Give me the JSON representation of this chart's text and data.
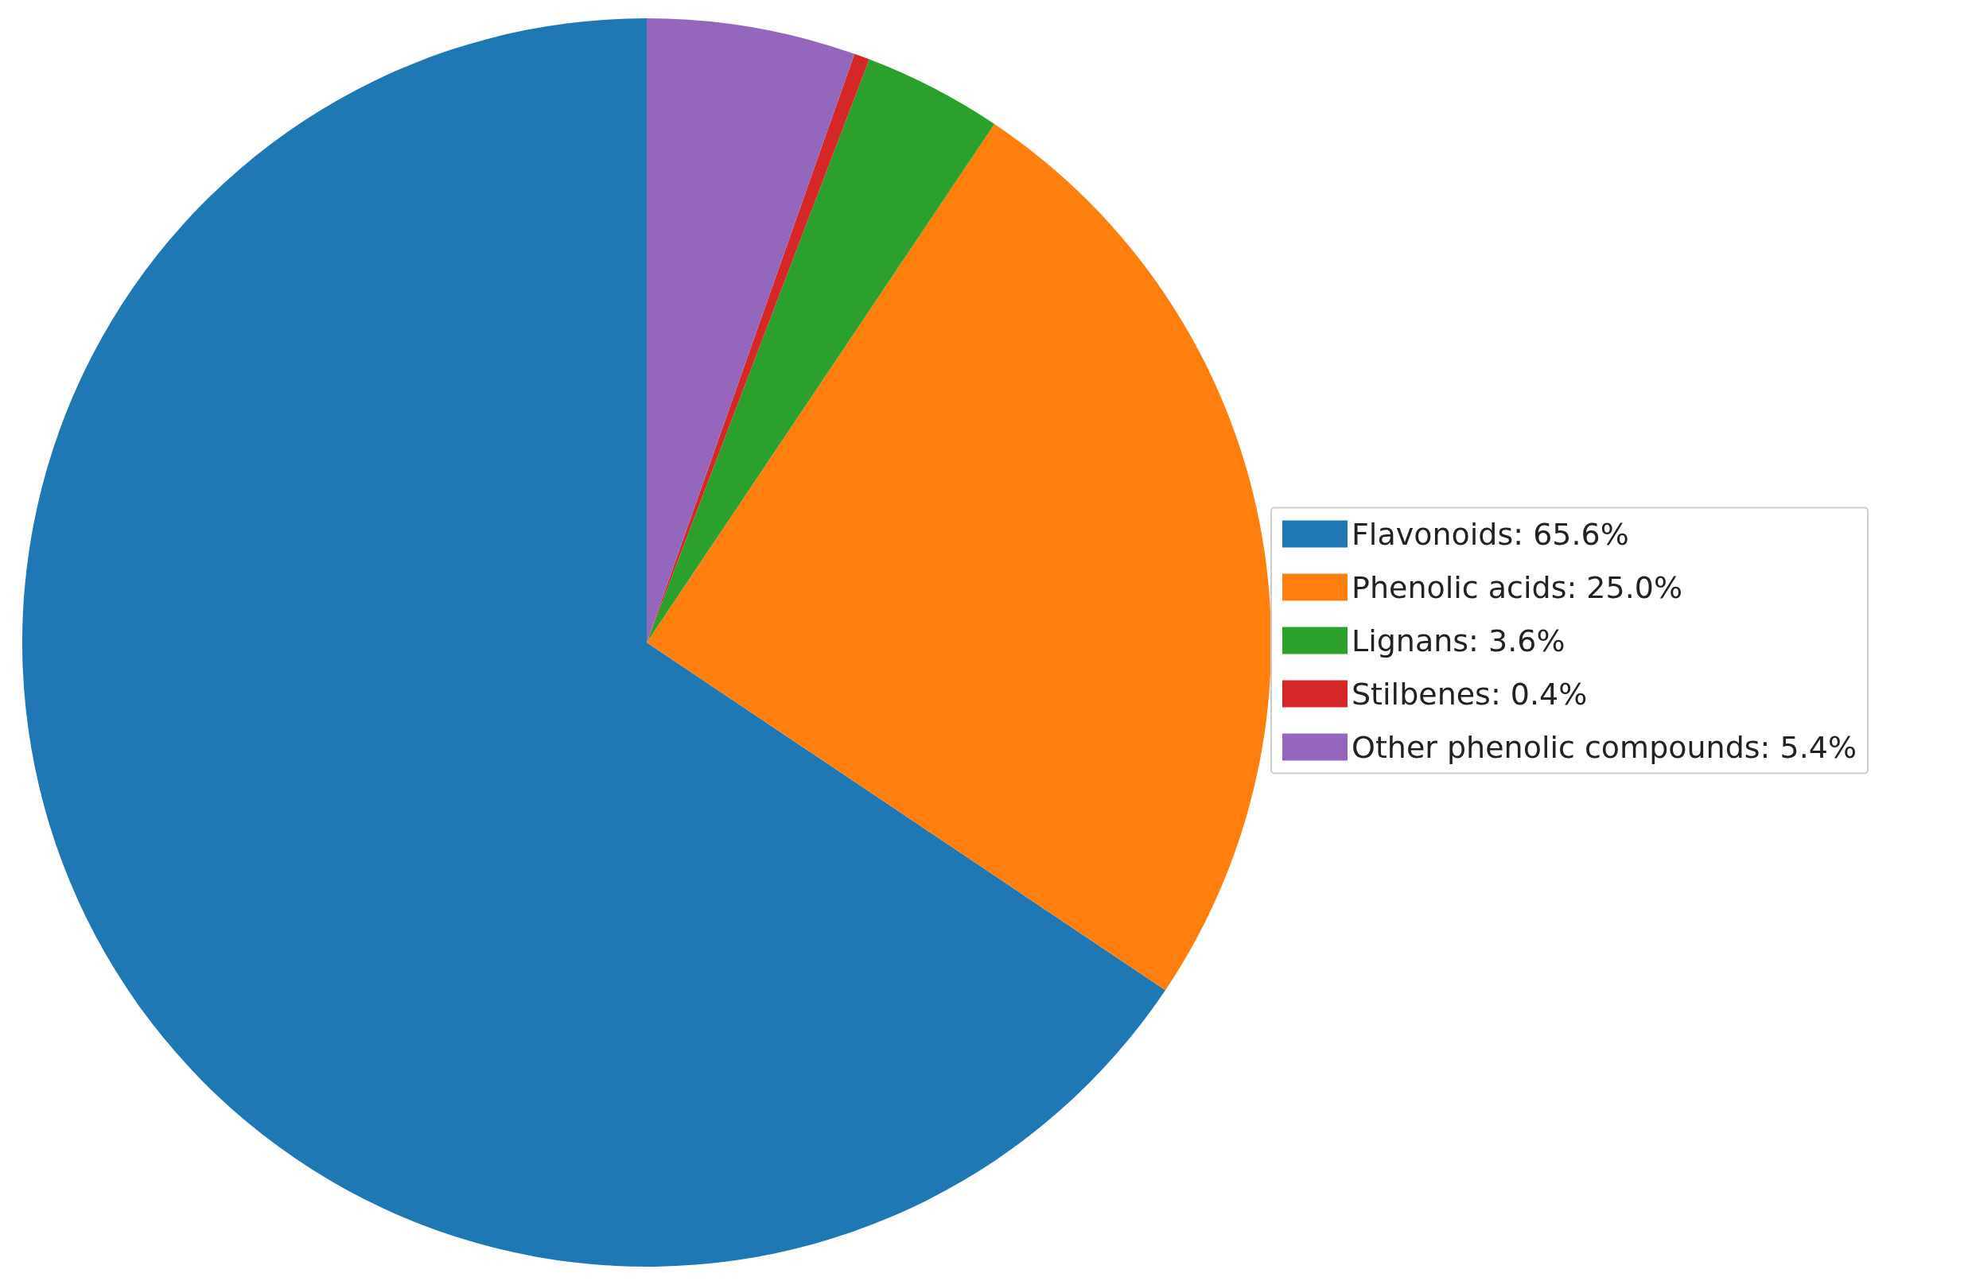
{
  "chart_data": {
    "type": "pie",
    "categories": [
      "Flavonoids: 65.6%",
      "Phenolic acids: 25.0%",
      "Lignans: 3.6%",
      "Stilbenes: 0.4%",
      "Other phenolic compounds: 5.4%"
    ],
    "values": [
      65.6,
      25.0,
      3.6,
      0.4,
      5.4
    ],
    "colors": [
      "#1f77b4",
      "#ff7f0e",
      "#2ca02c",
      "#d62728",
      "#9467bd"
    ],
    "legend": "right"
  }
}
